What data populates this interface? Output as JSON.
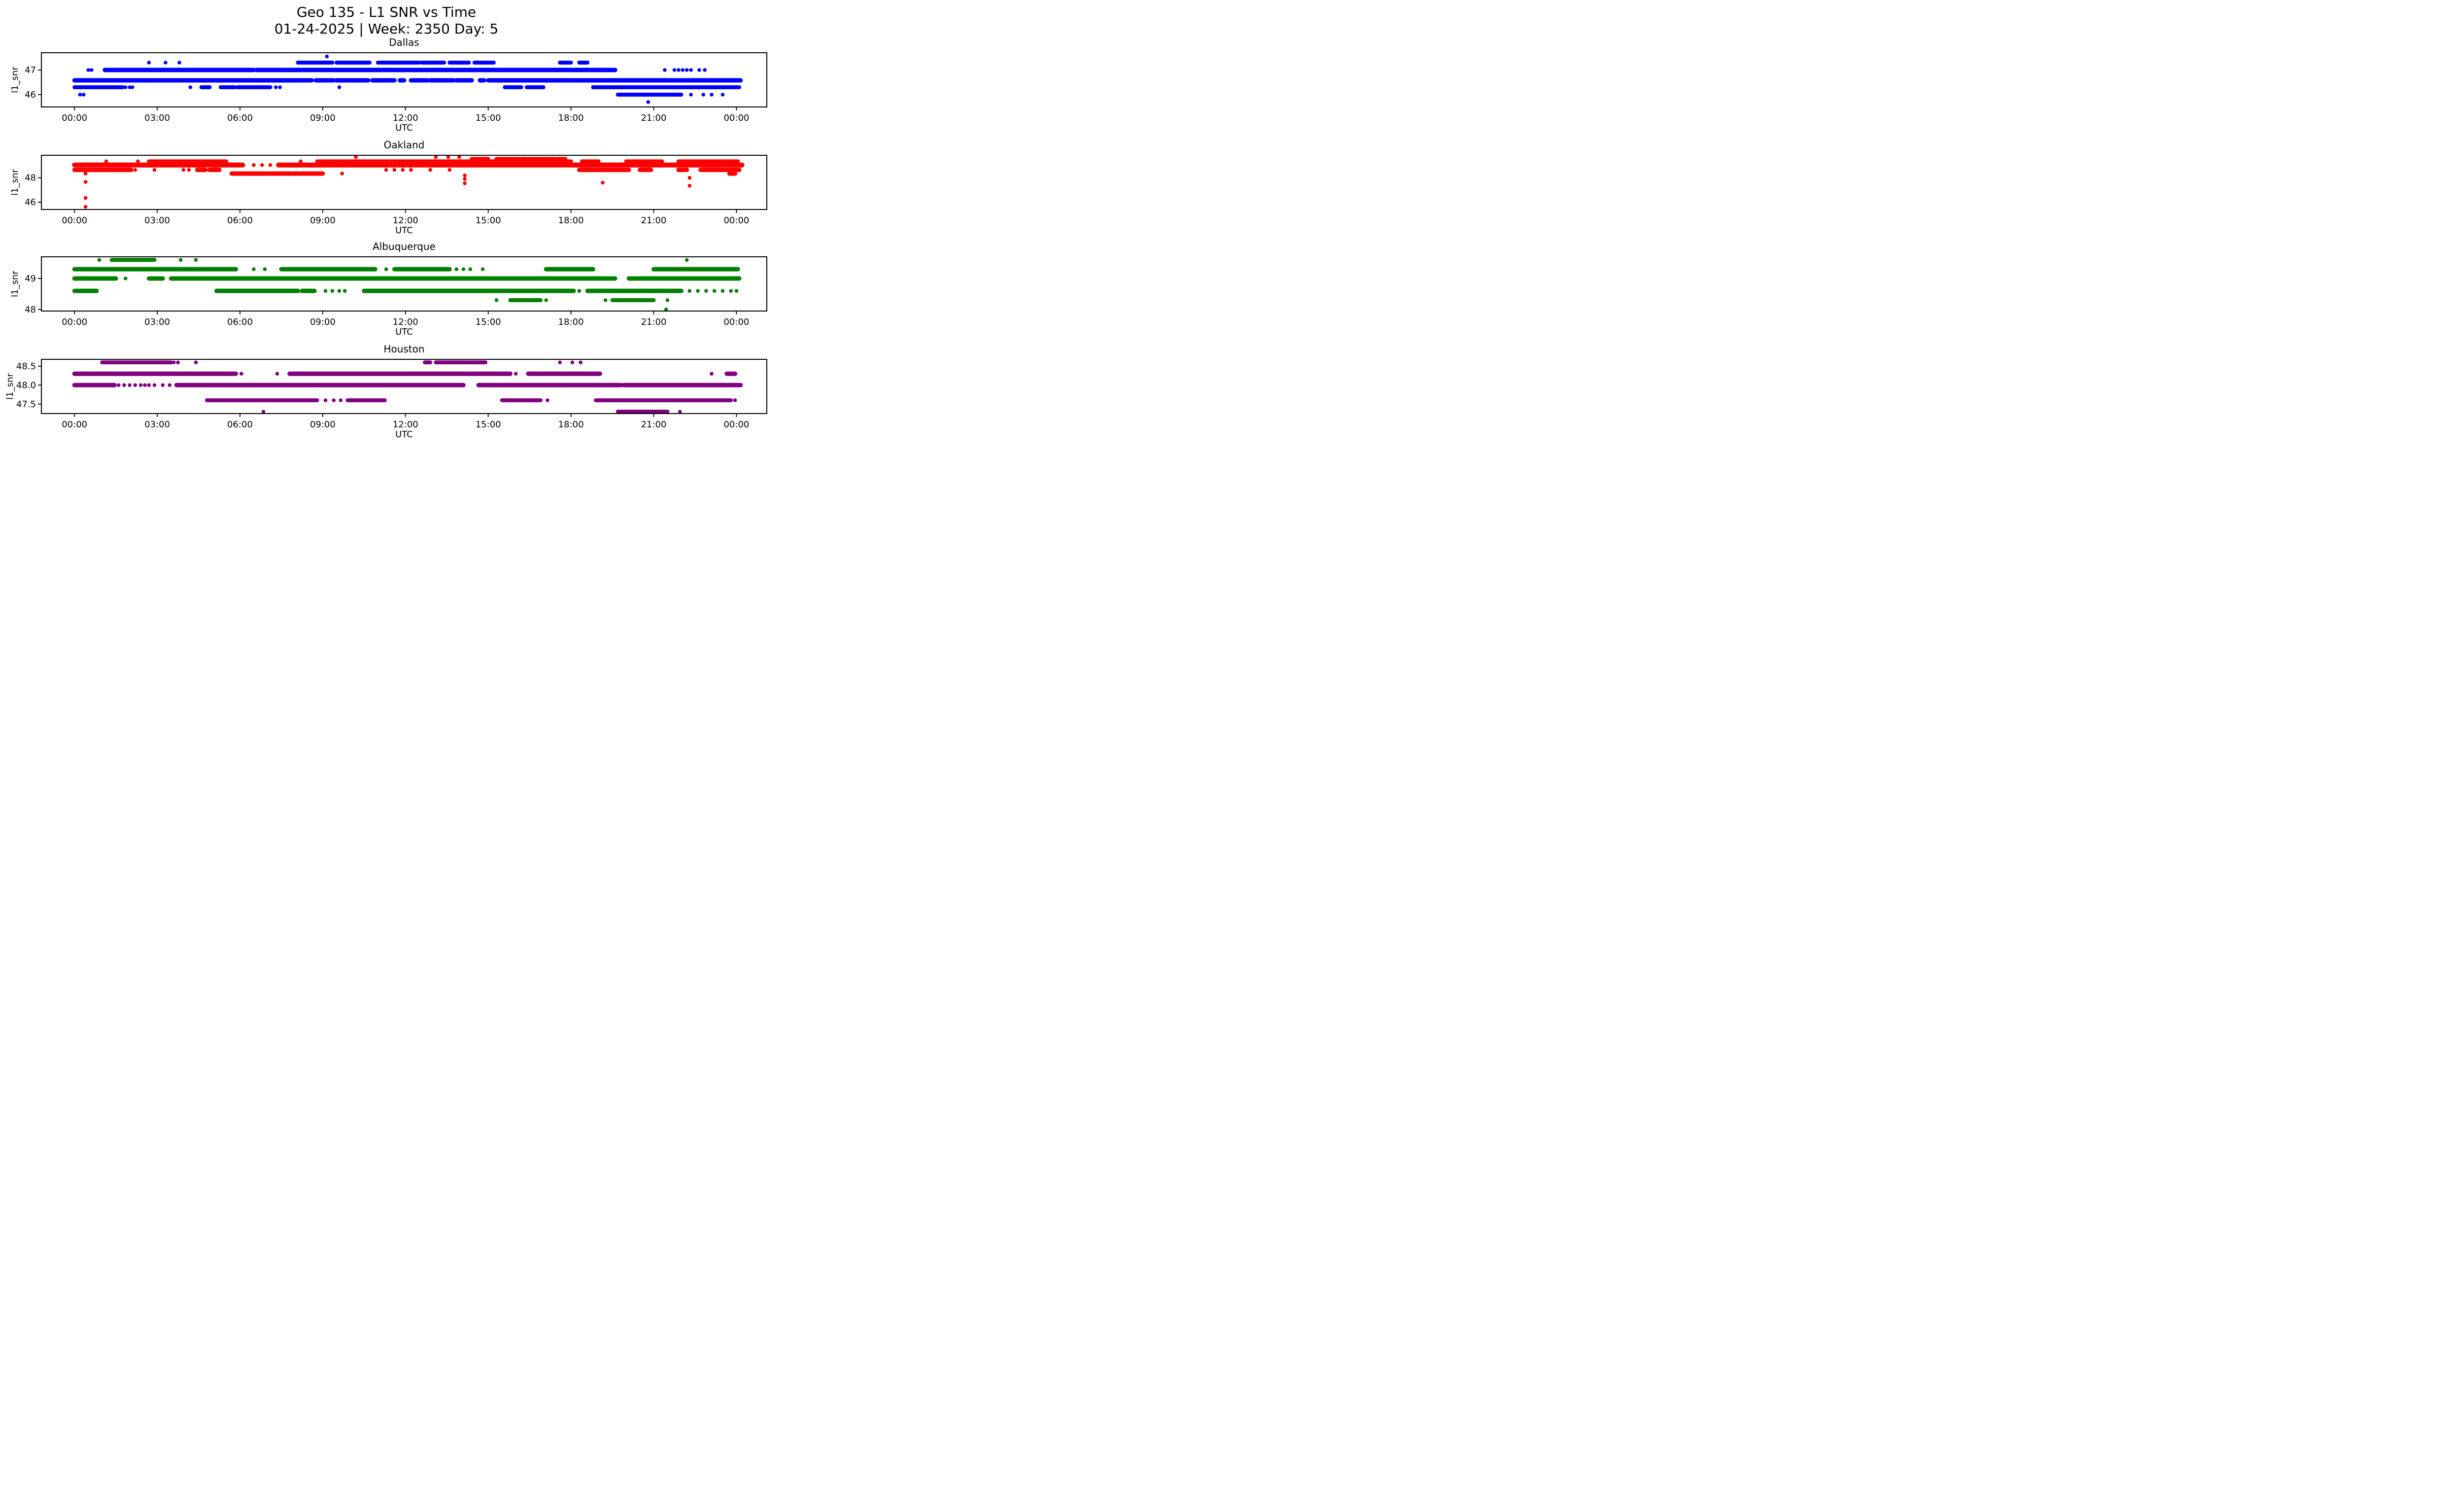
{
  "figure": {
    "background": "#ffffff"
  },
  "title": {
    "line1": "Geo 135 - L1 SNR vs Time",
    "line2": "01-24-2025 | Week: 2350 Day: 5"
  },
  "axes": {
    "xlim": [
      -1.2,
      25.1
    ],
    "xticks": [
      0,
      3,
      6,
      9,
      12,
      15,
      18,
      21,
      24
    ],
    "xtick_labels": [
      "00:00",
      "03:00",
      "06:00",
      "09:00",
      "12:00",
      "15:00",
      "18:00",
      "21:00",
      "00:00"
    ],
    "xlabel": "UTC",
    "ylabel": "l1_snr",
    "grid": false,
    "legend": "none"
  },
  "chart_data": [
    {
      "type": "scatter",
      "title": "Dallas",
      "color": "#0000ff",
      "xlabel": "UTC",
      "ylabel": "l1_snr",
      "ylim": [
        45.5,
        47.7
      ],
      "yticks": [
        {
          "v": 47,
          "label": "47"
        },
        {
          "v": 46,
          "label": "46"
        }
      ],
      "bands": [
        {
          "v": 47.3,
          "w": 8,
          "spans": [
            [
              8.1,
              9.35
            ],
            [
              9.5,
              10.7
            ],
            [
              11.0,
              12.5
            ],
            [
              12.6,
              13.4
            ],
            [
              13.6,
              14.3
            ],
            [
              14.5,
              15.2
            ],
            [
              17.6,
              18.0
            ],
            [
              18.3,
              18.6
            ]
          ]
        },
        {
          "v": 47.0,
          "w": 9,
          "spans": [
            [
              1.1,
              6.5
            ],
            [
              6.6,
              19.6
            ]
          ]
        },
        {
          "v": 46.58,
          "w": 9,
          "spans": [
            [
              0.0,
              8.6
            ],
            [
              8.75,
              9.4
            ],
            [
              9.5,
              10.0
            ],
            [
              10.05,
              10.65
            ],
            [
              10.8,
              11.6
            ],
            [
              11.8,
              11.95
            ],
            [
              12.2,
              12.8
            ],
            [
              12.9,
              13.3
            ],
            [
              13.35,
              13.75
            ],
            [
              13.85,
              14.4
            ],
            [
              14.7,
              14.85
            ],
            [
              15.0,
              24.15
            ]
          ]
        },
        {
          "v": 46.3,
          "w": 8,
          "spans": [
            [
              0.0,
              1.75
            ],
            [
              4.6,
              4.9
            ],
            [
              5.3,
              5.8
            ],
            [
              5.9,
              7.1
            ],
            [
              15.6,
              16.2
            ],
            [
              16.4,
              17.0
            ],
            [
              18.8,
              24.1
            ]
          ]
        },
        {
          "v": 46.0,
          "w": 8,
          "spans": [
            [
              19.7,
              22.0
            ]
          ]
        }
      ],
      "points": [
        [
          9.15,
          47.55
        ],
        [
          2.7,
          47.3
        ],
        [
          3.3,
          47.3
        ],
        [
          3.8,
          47.3
        ],
        [
          0.5,
          47.0
        ],
        [
          0.62,
          47.0
        ],
        [
          21.4,
          47.0
        ],
        [
          21.75,
          47.0
        ],
        [
          21.9,
          47.0
        ],
        [
          22.05,
          47.0
        ],
        [
          22.2,
          47.0
        ],
        [
          22.35,
          47.0
        ],
        [
          22.65,
          47.0
        ],
        [
          22.85,
          47.0
        ],
        [
          1.85,
          46.3
        ],
        [
          2.0,
          46.3
        ],
        [
          2.1,
          46.3
        ],
        [
          4.2,
          46.3
        ],
        [
          7.3,
          46.3
        ],
        [
          7.45,
          46.3
        ],
        [
          9.6,
          46.3
        ],
        [
          0.2,
          46.0
        ],
        [
          0.33,
          46.0
        ],
        [
          22.35,
          46.0
        ],
        [
          22.8,
          46.0
        ],
        [
          23.1,
          46.0
        ],
        [
          23.5,
          46.0
        ],
        [
          20.8,
          45.7
        ]
      ]
    },
    {
      "type": "scatter",
      "title": "Oakland",
      "color": "#ff0000",
      "xlabel": "UTC",
      "ylabel": "l1_snr",
      "ylim": [
        45.4,
        49.85
      ],
      "yticks": [
        {
          "v": 48,
          "label": "48"
        },
        {
          "v": 46,
          "label": "46"
        }
      ],
      "bands": [
        {
          "v": 49.55,
          "w": 8,
          "spans": [
            [
              14.4,
              15.0
            ],
            [
              15.3,
              16.1
            ],
            [
              16.2,
              17.4
            ],
            [
              17.5,
              17.8
            ]
          ]
        },
        {
          "v": 49.35,
          "w": 8,
          "spans": [
            [
              2.7,
              5.5
            ],
            [
              8.8,
              14.35
            ],
            [
              14.4,
              18.0
            ],
            [
              18.4,
              19.0
            ],
            [
              20.0,
              21.3
            ],
            [
              21.9,
              24.05
            ]
          ]
        },
        {
          "v": 49.05,
          "w": 10,
          "spans": [
            [
              0.0,
              6.1
            ],
            [
              7.4,
              24.2
            ]
          ]
        },
        {
          "v": 48.65,
          "w": 9,
          "spans": [
            [
              0.0,
              2.05
            ],
            [
              4.45,
              4.75
            ],
            [
              4.9,
              5.25
            ],
            [
              18.3,
              20.1
            ],
            [
              20.5,
              20.9
            ],
            [
              21.9,
              22.2
            ],
            [
              22.7,
              24.1
            ]
          ]
        },
        {
          "v": 48.35,
          "w": 9,
          "spans": [
            [
              5.7,
              9.0
            ],
            [
              23.75,
              23.95
            ]
          ]
        }
      ],
      "points": [
        [
          10.2,
          49.7
        ],
        [
          13.1,
          49.7
        ],
        [
          13.55,
          49.7
        ],
        [
          13.95,
          49.7
        ],
        [
          1.15,
          49.35
        ],
        [
          2.3,
          49.35
        ],
        [
          8.2,
          49.35
        ],
        [
          6.5,
          49.05
        ],
        [
          6.8,
          49.05
        ],
        [
          7.1,
          49.05
        ],
        [
          2.2,
          48.65
        ],
        [
          2.9,
          48.65
        ],
        [
          3.95,
          48.65
        ],
        [
          4.15,
          48.65
        ],
        [
          11.3,
          48.65
        ],
        [
          11.6,
          48.65
        ],
        [
          11.9,
          48.65
        ],
        [
          12.2,
          48.65
        ],
        [
          12.9,
          48.65
        ],
        [
          13.6,
          48.65
        ],
        [
          9.7,
          48.35
        ],
        [
          0.4,
          48.35
        ],
        [
          0.4,
          47.66
        ],
        [
          0.4,
          46.35
        ],
        [
          0.4,
          45.62
        ],
        [
          14.15,
          48.2
        ],
        [
          14.15,
          47.9
        ],
        [
          14.15,
          47.55
        ],
        [
          19.15,
          47.6
        ],
        [
          22.3,
          48.0
        ],
        [
          22.3,
          47.35
        ]
      ]
    },
    {
      "type": "scatter",
      "title": "Albuquerque",
      "color": "#008000",
      "xlabel": "UTC",
      "ylabel": "l1_snr",
      "ylim": [
        47.95,
        49.7
      ],
      "yticks": [
        {
          "v": 49,
          "label": "49"
        },
        {
          "v": 48,
          "label": "48"
        }
      ],
      "bands": [
        {
          "v": 49.6,
          "w": 8,
          "spans": [
            [
              1.35,
              2.9
            ]
          ]
        },
        {
          "v": 49.3,
          "w": 9,
          "spans": [
            [
              0.0,
              5.85
            ],
            [
              7.5,
              10.9
            ],
            [
              11.6,
              13.6
            ],
            [
              17.1,
              18.8
            ],
            [
              21.0,
              24.05
            ]
          ]
        },
        {
          "v": 49.0,
          "w": 9,
          "spans": [
            [
              0.0,
              1.5
            ],
            [
              2.7,
              3.2
            ],
            [
              3.5,
              19.6
            ],
            [
              20.1,
              24.1
            ]
          ]
        },
        {
          "v": 48.6,
          "w": 9,
          "spans": [
            [
              0.0,
              0.8
            ],
            [
              5.15,
              8.1
            ],
            [
              8.25,
              8.7
            ],
            [
              10.5,
              18.1
            ],
            [
              18.6,
              22.0
            ]
          ]
        },
        {
          "v": 48.3,
          "w": 8,
          "spans": [
            [
              15.8,
              16.9
            ],
            [
              19.5,
              21.0
            ]
          ]
        }
      ],
      "points": [
        [
          0.9,
          49.6
        ],
        [
          3.85,
          49.6
        ],
        [
          4.4,
          49.6
        ],
        [
          22.2,
          49.6
        ],
        [
          6.5,
          49.3
        ],
        [
          6.9,
          49.3
        ],
        [
          11.3,
          49.3
        ],
        [
          13.85,
          49.3
        ],
        [
          14.1,
          49.3
        ],
        [
          14.35,
          49.3
        ],
        [
          14.8,
          49.3
        ],
        [
          1.85,
          49.0
        ],
        [
          9.1,
          48.6
        ],
        [
          9.35,
          48.6
        ],
        [
          9.6,
          48.6
        ],
        [
          9.8,
          48.6
        ],
        [
          18.3,
          48.6
        ],
        [
          22.3,
          48.6
        ],
        [
          22.6,
          48.6
        ],
        [
          22.9,
          48.6
        ],
        [
          23.2,
          48.6
        ],
        [
          23.5,
          48.6
        ],
        [
          23.8,
          48.6
        ],
        [
          24.0,
          48.6
        ],
        [
          15.3,
          48.3
        ],
        [
          17.1,
          48.3
        ],
        [
          19.25,
          48.3
        ],
        [
          21.5,
          48.3
        ],
        [
          21.45,
          48.0
        ]
      ]
    },
    {
      "type": "scatter",
      "title": "Houston",
      "color": "#800080",
      "xlabel": "UTC",
      "ylabel": "l1_snr",
      "ylim": [
        47.25,
        48.68
      ],
      "yticks": [
        {
          "v": 48.5,
          "label": "48.5"
        },
        {
          "v": 48.0,
          "label": "48.0"
        },
        {
          "v": 47.5,
          "label": "47.5"
        }
      ],
      "bands": [
        {
          "v": 48.6,
          "w": 8,
          "spans": [
            [
              1.0,
              3.5
            ],
            [
              12.7,
              12.9
            ],
            [
              13.1,
              14.9
            ]
          ]
        },
        {
          "v": 48.3,
          "w": 9,
          "spans": [
            [
              0.0,
              5.85
            ],
            [
              7.8,
              15.8
            ],
            [
              16.45,
              19.05
            ],
            [
              23.65,
              23.95
            ]
          ]
        },
        {
          "v": 48.0,
          "w": 9,
          "spans": [
            [
              0.0,
              1.45
            ],
            [
              3.7,
              14.1
            ],
            [
              14.65,
              19.8
            ],
            [
              19.9,
              24.15
            ]
          ]
        },
        {
          "v": 47.6,
          "w": 8,
          "spans": [
            [
              4.8,
              8.8
            ],
            [
              9.9,
              11.25
            ],
            [
              15.5,
              16.9
            ],
            [
              18.9,
              23.8
            ]
          ]
        },
        {
          "v": 47.3,
          "w": 8,
          "spans": [
            [
              19.7,
              21.5
            ]
          ]
        }
      ],
      "points": [
        [
          3.6,
          48.6
        ],
        [
          3.75,
          48.6
        ],
        [
          4.4,
          48.6
        ],
        [
          17.6,
          48.6
        ],
        [
          18.05,
          48.6
        ],
        [
          18.35,
          48.6
        ],
        [
          6.05,
          48.3
        ],
        [
          7.35,
          48.3
        ],
        [
          16.0,
          48.3
        ],
        [
          23.1,
          48.3
        ],
        [
          1.6,
          48.0
        ],
        [
          1.8,
          48.0
        ],
        [
          2.0,
          48.0
        ],
        [
          2.2,
          48.0
        ],
        [
          2.4,
          48.0
        ],
        [
          2.55,
          48.0
        ],
        [
          2.7,
          48.0
        ],
        [
          2.9,
          48.0
        ],
        [
          3.2,
          48.0
        ],
        [
          3.45,
          48.0
        ],
        [
          9.1,
          47.6
        ],
        [
          9.4,
          47.6
        ],
        [
          9.65,
          47.6
        ],
        [
          17.15,
          47.6
        ],
        [
          23.95,
          47.6
        ],
        [
          6.85,
          47.3
        ],
        [
          21.95,
          47.3
        ]
      ]
    }
  ]
}
